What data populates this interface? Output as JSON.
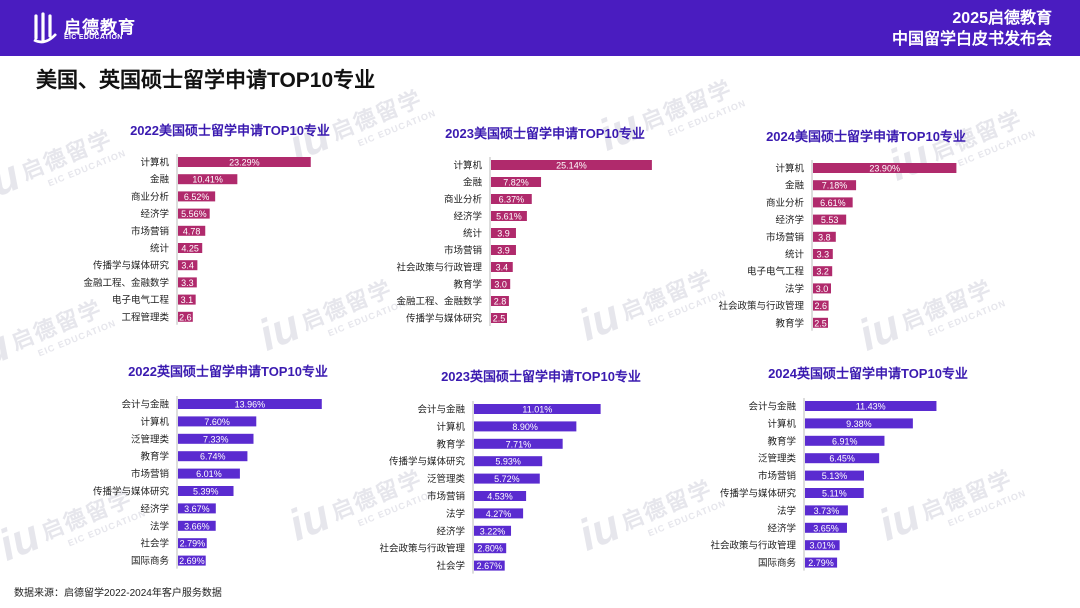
{
  "header": {
    "logo_cn": "启德教育",
    "logo_en": "EIC EDUCATION",
    "event_line1": "2025启德教育",
    "event_line2": "中国留学白皮书发布会"
  },
  "page_title": "美国、英国硕士留学申请TOP10专业",
  "source": "数据来源：启德留学2022-2024年客户服务数据",
  "watermark": {
    "cn": "启德留学",
    "en": "EIC EDUCATION",
    "mark": "iu"
  },
  "colors": {
    "header_bg": "#4a1cc0",
    "us_bar": "#b02a6c",
    "uk_bar": "#5a2bd0"
  },
  "chart_data": [
    {
      "type": "bar",
      "orientation": "horizontal",
      "region": "us",
      "title": "2022美国硕士留学申请TOP10专业",
      "categories": [
        "计算机",
        "金融",
        "商业分析",
        "经济学",
        "市场营销",
        "统计",
        "传播学与媒体研究",
        "金融工程、金融数学",
        "电子电气工程",
        "工程管理类"
      ],
      "values": [
        23.29,
        10.41,
        6.52,
        5.56,
        4.78,
        4.25,
        3.4,
        3.3,
        3.1,
        2.6
      ],
      "labels": [
        "23.29%",
        "10.41%",
        "6.52%",
        "5.56%",
        "4.78",
        "4.25",
        "3.4",
        "3.3",
        "3.1",
        "2.6"
      ]
    },
    {
      "type": "bar",
      "orientation": "horizontal",
      "region": "us",
      "title": "2023美国硕士留学申请TOP10专业",
      "categories": [
        "计算机",
        "金融",
        "商业分析",
        "经济学",
        "统计",
        "市场营销",
        "社会政策与行政管理",
        "教育学",
        "金融工程、金融数学",
        "传播学与媒体研究"
      ],
      "values": [
        25.14,
        7.82,
        6.37,
        5.61,
        3.9,
        3.9,
        3.4,
        3.0,
        2.8,
        2.5
      ],
      "labels": [
        "25.14%",
        "7.82%",
        "6.37%",
        "5.61%",
        "3.9",
        "3.9",
        "3.4",
        "3.0",
        "2.8",
        "2.5"
      ]
    },
    {
      "type": "bar",
      "orientation": "horizontal",
      "region": "us",
      "title": "2024美国硕士留学申请TOP10专业",
      "categories": [
        "计算机",
        "金融",
        "商业分析",
        "经济学",
        "市场营销",
        "统计",
        "电子电气工程",
        "法学",
        "社会政策与行政管理",
        "教育学"
      ],
      "values": [
        23.9,
        7.18,
        6.61,
        5.53,
        3.8,
        3.3,
        3.2,
        3.0,
        2.6,
        2.5
      ],
      "labels": [
        "23.90%",
        "7.18%",
        "6.61%",
        "5.53",
        "3.8",
        "3.3",
        "3.2",
        "3.0",
        "2.6",
        "2.5"
      ]
    },
    {
      "type": "bar",
      "orientation": "horizontal",
      "region": "uk",
      "title": "2022英国硕士留学申请TOP10专业",
      "categories": [
        "会计与金融",
        "计算机",
        "泛管理类",
        "教育学",
        "市场营销",
        "传播学与媒体研究",
        "经济学",
        "法学",
        "社会学",
        "国际商务"
      ],
      "values": [
        13.96,
        7.6,
        7.33,
        6.74,
        6.01,
        5.39,
        3.67,
        3.66,
        2.79,
        2.69
      ],
      "labels": [
        "13.96%",
        "7.60%",
        "7.33%",
        "6.74%",
        "6.01%",
        "5.39%",
        "3.67%",
        "3.66%",
        "2.79%",
        "2.69%"
      ]
    },
    {
      "type": "bar",
      "orientation": "horizontal",
      "region": "uk",
      "title": "2023英国硕士留学申请TOP10专业",
      "categories": [
        "会计与金融",
        "计算机",
        "教育学",
        "传播学与媒体研究",
        "泛管理类",
        "市场营销",
        "法学",
        "经济学",
        "社会政策与行政管理",
        "社会学"
      ],
      "values": [
        11.01,
        8.9,
        7.71,
        5.93,
        5.72,
        4.53,
        4.27,
        3.22,
        2.8,
        2.67
      ],
      "labels": [
        "11.01%",
        "8.90%",
        "7.71%",
        "5.93%",
        "5.72%",
        "4.53%",
        "4.27%",
        "3.22%",
        "2.80%",
        "2.67%"
      ]
    },
    {
      "type": "bar",
      "orientation": "horizontal",
      "region": "uk",
      "title": "2024英国硕士留学申请TOP10专业",
      "categories": [
        "会计与金融",
        "计算机",
        "教育学",
        "泛管理类",
        "市场营销",
        "传播学与媒体研究",
        "法学",
        "经济学",
        "社会政策与行政管理",
        "国际商务"
      ],
      "values": [
        11.43,
        9.38,
        6.91,
        6.45,
        5.13,
        5.11,
        3.73,
        3.65,
        3.01,
        2.79
      ],
      "labels": [
        "11.43%",
        "9.38%",
        "6.91%",
        "6.45%",
        "5.13%",
        "5.11%",
        "3.73%",
        "3.65%",
        "3.01%",
        "2.79%"
      ]
    }
  ]
}
